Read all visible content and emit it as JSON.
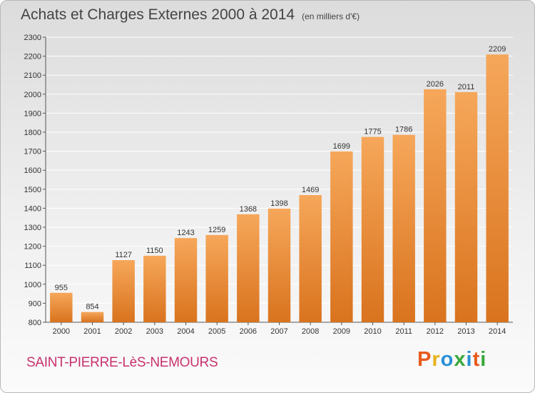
{
  "header": {
    "title": "Achats et Charges Externes 2000 à 2014",
    "unit": "(en milliers d'€)"
  },
  "footer": {
    "commune": "SAINT-PIERRE-LèS-NEMOURS",
    "brand": "Proxiti",
    "brand_colors": [
      "#e85a1c",
      "#e8b21c",
      "#2a8fd8",
      "#3aa83a",
      "#2a8fd8",
      "#e85a1c",
      "#3aa83a"
    ]
  },
  "colors": {
    "bar_light": "#f6a75a",
    "bar_dark": "#d9731e",
    "grid": "#ffffff",
    "axis": "#555555"
  },
  "chart_data": {
    "type": "bar",
    "categories": [
      "2000",
      "2001",
      "2002",
      "2003",
      "2004",
      "2005",
      "2006",
      "2007",
      "2008",
      "2009",
      "2010",
      "2011",
      "2012",
      "2013",
      "2014"
    ],
    "values": [
      955,
      854,
      1127,
      1150,
      1243,
      1259,
      1368,
      1398,
      1469,
      1699,
      1775,
      1786,
      2026,
      2011,
      2209
    ],
    "data_labels": [
      "955",
      "854",
      "1127",
      "1150",
      "1243",
      "1259",
      "1368",
      "1398",
      "1469",
      "1699",
      "1775",
      "1786",
      "2026",
      "2011",
      "2209"
    ],
    "title": "Achats et Charges Externes 2000 à 2014",
    "xlabel": "",
    "ylabel": "",
    "ylim": [
      800,
      2300
    ],
    "yticks": [
      800,
      900,
      1000,
      1100,
      1200,
      1300,
      1400,
      1500,
      1600,
      1700,
      1800,
      1900,
      2000,
      2100,
      2200,
      2300
    ],
    "grid": true
  }
}
